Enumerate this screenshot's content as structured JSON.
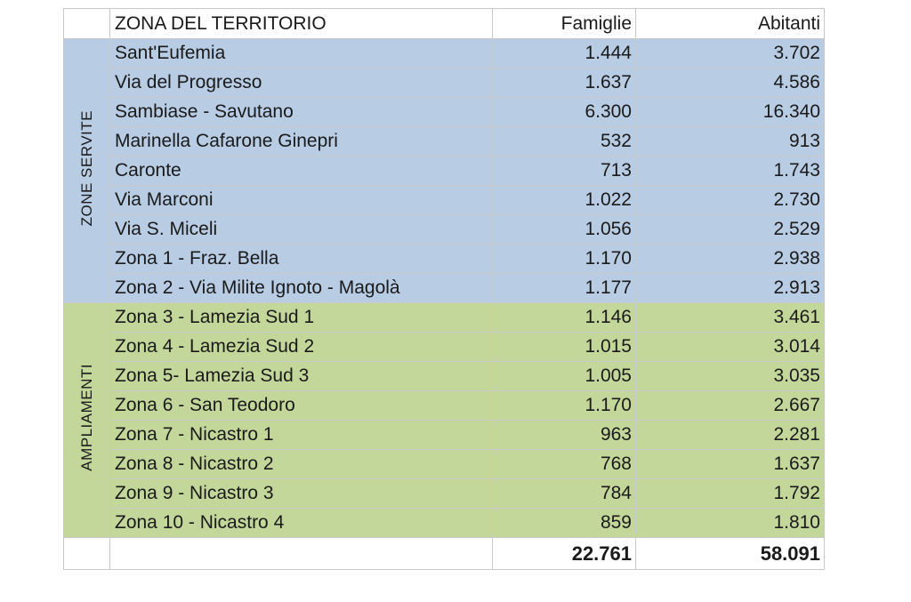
{
  "headers": {
    "zone": "ZONA DEL TERRITORIO",
    "families": "Famiglie",
    "inhabitants": "Abitanti"
  },
  "groups": [
    {
      "label": "ZONE SERVITE",
      "color": "#b8cce4",
      "rows": [
        {
          "zone": "Sant'Eufemia",
          "families": "1.444",
          "inhabitants": "3.702"
        },
        {
          "zone": "Via del Progresso",
          "families": "1.637",
          "inhabitants": "4.586"
        },
        {
          "zone": "Sambiase - Savutano",
          "families": "6.300",
          "inhabitants": "16.340"
        },
        {
          "zone": "Marinella Cafarone Ginepri",
          "families": "532",
          "inhabitants": "913"
        },
        {
          "zone": "Caronte",
          "families": "713",
          "inhabitants": "1.743"
        },
        {
          "zone": "Via Marconi",
          "families": "1.022",
          "inhabitants": "2.730"
        },
        {
          "zone": "Via S. Miceli",
          "families": "1.056",
          "inhabitants": "2.529"
        },
        {
          "zone": "Zona 1 - Fraz. Bella",
          "families": "1.170",
          "inhabitants": "2.938"
        },
        {
          "zone": "Zona 2 - Via Milite Ignoto - Magolà",
          "families": "1.177",
          "inhabitants": "2.913"
        }
      ]
    },
    {
      "label": "AMPLIAMENTI",
      "color": "#c4d79b",
      "rows": [
        {
          "zone": "Zona 3 - Lamezia Sud 1",
          "families": "1.146",
          "inhabitants": "3.461"
        },
        {
          "zone": "Zona 4 - Lamezia Sud 2",
          "families": "1.015",
          "inhabitants": "3.014"
        },
        {
          "zone": "Zona 5-  Lamezia Sud 3",
          "families": "1.005",
          "inhabitants": "3.035"
        },
        {
          "zone": "Zona 6 - San Teodoro",
          "families": "1.170",
          "inhabitants": "2.667"
        },
        {
          "zone": "Zona 7 -  Nicastro 1",
          "families": "963",
          "inhabitants": "2.281"
        },
        {
          "zone": "Zona 8 -  Nicastro 2",
          "families": "768",
          "inhabitants": "1.637"
        },
        {
          "zone": "Zona 9 -   Nicastro 3",
          "families": "784",
          "inhabitants": "1.792"
        },
        {
          "zone": "Zona 10 - Nicastro 4",
          "families": "859",
          "inhabitants": "1.810"
        }
      ]
    }
  ],
  "totals": {
    "families": "22.761",
    "inhabitants": "58.091"
  }
}
